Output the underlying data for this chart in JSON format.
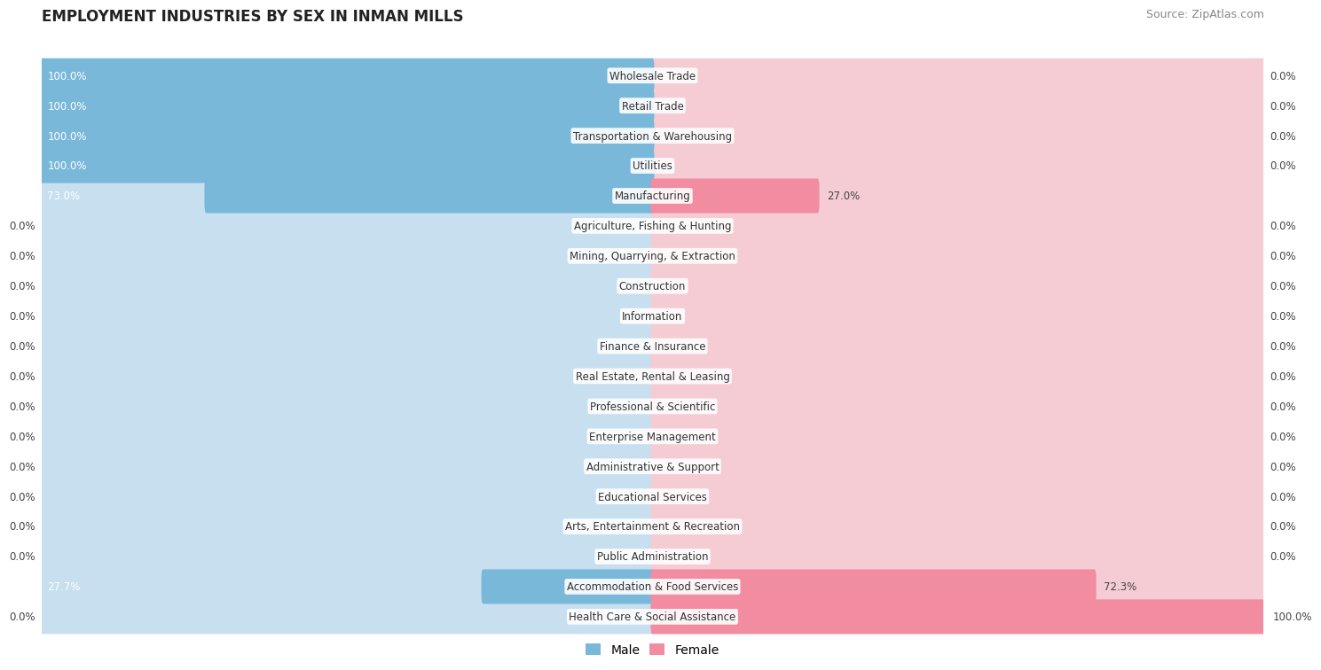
{
  "title": "EMPLOYMENT INDUSTRIES BY SEX IN INMAN MILLS",
  "source": "Source: ZipAtlas.com",
  "industries": [
    "Wholesale Trade",
    "Retail Trade",
    "Transportation & Warehousing",
    "Utilities",
    "Manufacturing",
    "Agriculture, Fishing & Hunting",
    "Mining, Quarrying, & Extraction",
    "Construction",
    "Information",
    "Finance & Insurance",
    "Real Estate, Rental & Leasing",
    "Professional & Scientific",
    "Enterprise Management",
    "Administrative & Support",
    "Educational Services",
    "Arts, Entertainment & Recreation",
    "Public Administration",
    "Accommodation & Food Services",
    "Health Care & Social Assistance"
  ],
  "male": [
    100.0,
    100.0,
    100.0,
    100.0,
    73.0,
    0.0,
    0.0,
    0.0,
    0.0,
    0.0,
    0.0,
    0.0,
    0.0,
    0.0,
    0.0,
    0.0,
    0.0,
    27.7,
    0.0
  ],
  "female": [
    0.0,
    0.0,
    0.0,
    0.0,
    27.0,
    0.0,
    0.0,
    0.0,
    0.0,
    0.0,
    0.0,
    0.0,
    0.0,
    0.0,
    0.0,
    0.0,
    0.0,
    72.3,
    100.0
  ],
  "male_color": "#7ab8d9",
  "female_color": "#f28ca0",
  "bar_bg_male": "#c8dff0",
  "bar_bg_female": "#f5ccd4",
  "row_colors": [
    "#eeeeee",
    "#f8f8f8"
  ],
  "title_color": "#222222",
  "source_color": "#888888",
  "label_fontsize": 8.5,
  "value_fontsize": 8.5,
  "title_fontsize": 12,
  "source_fontsize": 9,
  "stub_size": 8.0,
  "bar_height": 0.55,
  "total_width": 100.0
}
